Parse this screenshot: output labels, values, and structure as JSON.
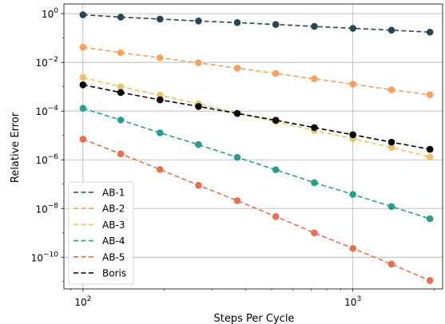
{
  "chart_data": {
    "type": "line",
    "xlabel": "Steps Per Cycle",
    "ylabel": "Relative Error",
    "xscale": "log",
    "yscale": "log",
    "xlim": [
      85,
      2150
    ],
    "ylim": [
      5e-12,
      2.5
    ],
    "x": [
      100,
      138,
      193,
      268,
      373,
      518,
      720,
      1000,
      1390,
      1930
    ],
    "x_ticks": [
      {
        "value": 100,
        "base": "10",
        "exp": "2"
      },
      {
        "value": 1000,
        "base": "10",
        "exp": "3"
      }
    ],
    "y_ticks": [
      {
        "value": 1,
        "base": "10",
        "exp": "0"
      },
      {
        "value": 0.01,
        "base": "10",
        "exp": "−2"
      },
      {
        "value": 0.0001,
        "base": "10",
        "exp": "−4"
      },
      {
        "value": 1e-06,
        "base": "10",
        "exp": "−6"
      },
      {
        "value": 1e-08,
        "base": "10",
        "exp": "−8"
      },
      {
        "value": 1e-10,
        "base": "10",
        "exp": "−10"
      }
    ],
    "grid": true,
    "legend_position": "lower-left",
    "series": [
      {
        "name": "AB-1",
        "color": "#264653",
        "values": [
          0.9,
          0.72,
          0.6,
          0.5,
          0.43,
          0.36,
          0.3,
          0.25,
          0.21,
          0.175
        ]
      },
      {
        "name": "AB-2",
        "color": "#f4a261",
        "values": [
          0.042,
          0.025,
          0.0155,
          0.0096,
          0.0058,
          0.0035,
          0.0021,
          0.00128,
          0.00075,
          0.00047
        ]
      },
      {
        "name": "AB-3",
        "color": "#e9c46a",
        "values": [
          0.0024,
          0.001,
          0.00045,
          0.0002,
          8.2e-05,
          3.7e-05,
          1.6e-05,
          7.4e-06,
          3.2e-06,
          1.3e-06
        ]
      },
      {
        "name": "AB-4",
        "color": "#2a9d8f",
        "values": [
          0.00013,
          4.3e-05,
          1.28e-05,
          4.2e-06,
          1.26e-06,
          3.9e-07,
          1.15e-07,
          3.8e-08,
          1.2e-08,
          3.8e-09
        ]
      },
      {
        "name": "AB-5",
        "color": "#e76f51",
        "values": [
          7e-06,
          1.75e-06,
          4e-07,
          9e-08,
          2.1e-08,
          4.7e-09,
          1e-09,
          2.3e-10,
          5.2e-11,
          1.1e-11
        ]
      },
      {
        "name": "Boris",
        "color": "#000000",
        "values": [
          0.0012,
          0.00058,
          0.00029,
          0.000155,
          8e-05,
          4.2e-05,
          2.1e-05,
          1.07e-05,
          5.3e-06,
          2.7e-06
        ]
      }
    ]
  }
}
